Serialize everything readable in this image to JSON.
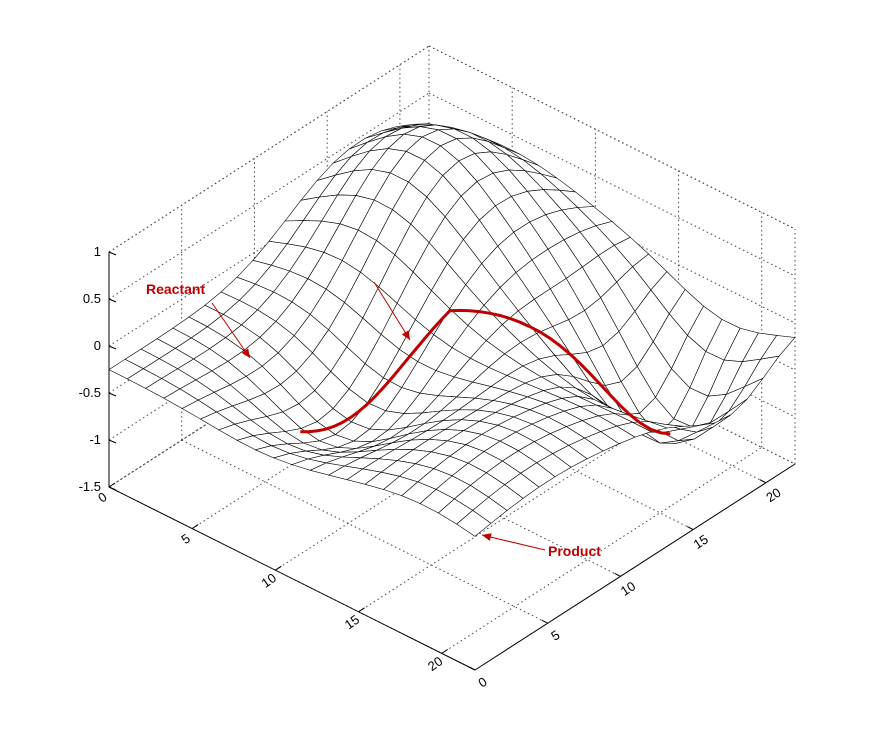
{
  "chart_data": {
    "type": "surface",
    "title": "",
    "xlabel": "",
    "ylabel": "",
    "zlabel": "",
    "grid": true,
    "x_ticks": [
      "0",
      "5",
      "10",
      "15",
      "20"
    ],
    "y_ticks": [
      "0",
      "5",
      "10",
      "15",
      "20"
    ],
    "z_ticks": [
      "1",
      "0.5",
      "0",
      "-0.5",
      "-1",
      "-1.5"
    ],
    "xlim": [
      0,
      22
    ],
    "ylim": [
      0,
      22
    ],
    "zlim": [
      -1.5,
      1
    ],
    "mesh_size": [
      20,
      20
    ],
    "annotations": [
      {
        "text": "Reactant",
        "kind": "minimum"
      },
      {
        "text": "Product",
        "kind": "minimum"
      }
    ],
    "path_color": "#c00000",
    "annotation_color": "#c00000",
    "surface_color": "#ffffff",
    "mesh_color": "#000000"
  }
}
